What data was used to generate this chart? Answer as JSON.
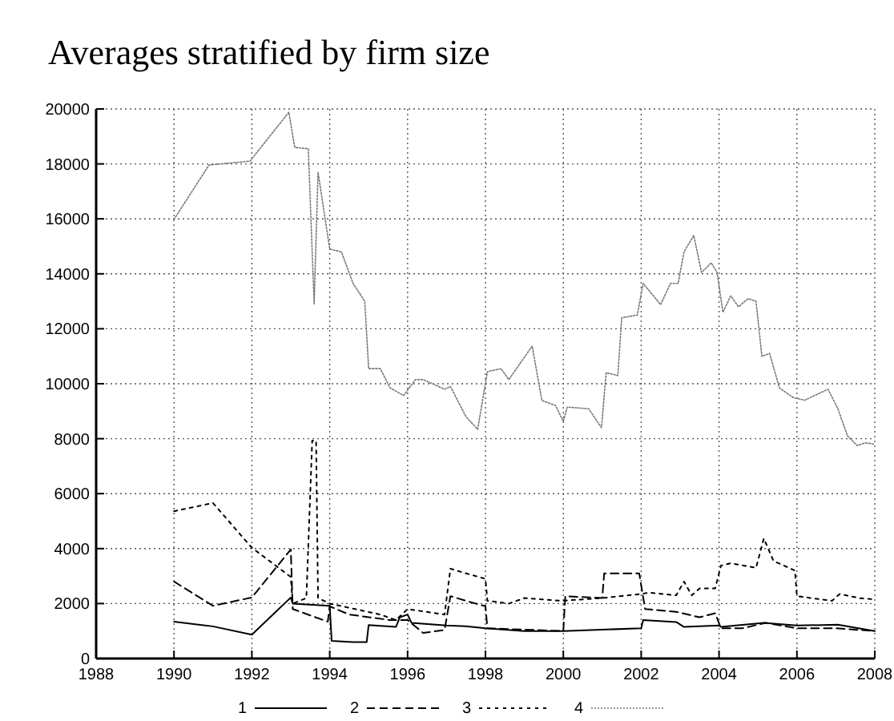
{
  "chart_data": {
    "type": "line",
    "title": "Averages stratified by firm size",
    "xlim": [
      1988,
      2008
    ],
    "xticks": [
      1988,
      1990,
      1992,
      1994,
      1996,
      1998,
      2000,
      2002,
      2004,
      2006,
      2008
    ],
    "ylim": [
      0,
      20000
    ],
    "yticks": [
      0,
      2000,
      4000,
      6000,
      8000,
      10000,
      12000,
      14000,
      16000,
      18000,
      20000
    ],
    "grid": true,
    "legend": "bottom",
    "series": [
      {
        "name": "1",
        "color": "#000000",
        "line_style": "solid",
        "x": [
          1990,
          1991,
          1992,
          1993,
          1993.05,
          1994,
          1994.05,
          1994.6,
          1994.95,
          1995,
          1995.7,
          1995.8,
          1996,
          1996.1,
          1997,
          1997.5,
          1998,
          1999,
          2000,
          2002,
          2002.05,
          2002.9,
          2003.1,
          2004,
          2004.05,
          2005.15,
          2006,
          2007.05,
          2008
        ],
        "values": [
          1340,
          1170,
          870,
          2220,
          2000,
          1920,
          640,
          600,
          600,
          1220,
          1150,
          1500,
          1600,
          1300,
          1200,
          1170,
          1100,
          1000,
          1000,
          1100,
          1400,
          1330,
          1150,
          1200,
          1150,
          1300,
          1200,
          1230,
          1000
        ]
      },
      {
        "name": "2",
        "color": "#000000",
        "line_style": "dashed",
        "x": [
          1990,
          1991,
          1992,
          1993,
          1993.05,
          1993.95,
          1994,
          1994.5,
          1995.55,
          1996,
          1996.4,
          1996.95,
          1997.1,
          1997.5,
          1998,
          1998.05,
          2000,
          2000.05,
          2001,
          2001.05,
          2001.95,
          2002.1,
          2002.9,
          2003.5,
          2003.9,
          2004.05,
          2004.6,
          2005.2,
          2006,
          2007,
          2008
        ],
        "values": [
          2800,
          1920,
          2220,
          3970,
          1800,
          1340,
          1900,
          1600,
          1400,
          1400,
          930,
          1040,
          2270,
          2100,
          1900,
          1100,
          1000,
          2270,
          2200,
          3100,
          3100,
          1800,
          1700,
          1500,
          1650,
          1100,
          1100,
          1300,
          1100,
          1100,
          1000
        ]
      },
      {
        "name": "3",
        "color": "#000000",
        "line_style": "dotted",
        "x": [
          1990,
          1991,
          1992,
          1993,
          1993.05,
          1993.4,
          1993.55,
          1993.65,
          1993.7,
          1994,
          1995.3,
          1995.7,
          1996,
          1996.95,
          1997.1,
          1997.5,
          1998,
          1998.05,
          1998.6,
          1999,
          1999.95,
          2001,
          2002,
          2002.2,
          2002.9,
          2003.1,
          2003.3,
          2003.5,
          2003.9,
          2004.05,
          2004.3,
          2004.95,
          2005.15,
          2005.4,
          2005.95,
          2006,
          2006.9,
          2007.1,
          2007.6,
          2008
        ],
        "values": [
          5360,
          5660,
          4030,
          2970,
          2000,
          2200,
          7930,
          7930,
          2200,
          2000,
          1600,
          1400,
          1800,
          1600,
          3270,
          3100,
          2900,
          2100,
          2000,
          2200,
          2100,
          2200,
          2350,
          2400,
          2300,
          2800,
          2300,
          2550,
          2550,
          3380,
          3470,
          3300,
          4370,
          3550,
          3200,
          2270,
          2100,
          2350,
          2200,
          2150
        ]
      },
      {
        "name": "4",
        "color": "#777777",
        "line_style": "dotted",
        "x": [
          1990,
          1990.9,
          1991.95,
          1992.95,
          1993.1,
          1993.45,
          1993.6,
          1993.7,
          1994,
          1994.3,
          1994.6,
          1994.9,
          1995,
          1995.3,
          1995.55,
          1995.9,
          1996.2,
          1996.4,
          1996.95,
          1997.1,
          1997.5,
          1997.8,
          1998.05,
          1998.4,
          1998.6,
          1999.2,
          1999.45,
          1999.8,
          2000,
          2000.1,
          2000.65,
          2000.98,
          2001.1,
          2001.4,
          2001.5,
          2001.9,
          2002.05,
          2002.5,
          2002.75,
          2002.95,
          2003.1,
          2003.35,
          2003.55,
          2003.8,
          2003.95,
          2004.1,
          2004.3,
          2004.5,
          2004.75,
          2004.95,
          2005.1,
          2005.3,
          2005.55,
          2005.9,
          2006.2,
          2006.5,
          2006.8,
          2007.05,
          2007.3,
          2007.55,
          2007.75,
          2008
        ],
        "values": [
          15980,
          17960,
          18100,
          19880,
          18600,
          18550,
          12900,
          17700,
          14900,
          14800,
          13650,
          13000,
          10550,
          10550,
          9850,
          9570,
          10150,
          10150,
          9800,
          9900,
          8800,
          8340,
          10440,
          10550,
          10150,
          11370,
          9390,
          9210,
          8630,
          9150,
          9090,
          8400,
          10400,
          10300,
          12400,
          12500,
          13650,
          12880,
          13650,
          13650,
          14800,
          15400,
          14050,
          14400,
          14050,
          12600,
          13200,
          12800,
          13100,
          13000,
          11000,
          11100,
          9850,
          9500,
          9400,
          9600,
          9800,
          9100,
          8100,
          7750,
          7850,
          7800
        ]
      }
    ]
  }
}
